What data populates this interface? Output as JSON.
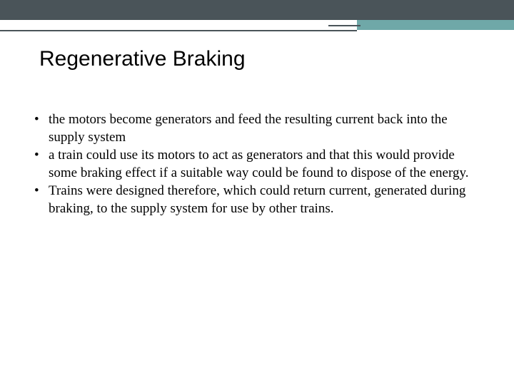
{
  "slide": {
    "title": "Regenerative Braking",
    "bullets": [
      "the motors become generators and feed the resulting current back into the supply system",
      "a train could use its motors to act as generators and that this would provide some braking effect if a suitable way could be found to dispose of the energy.",
      "Trains were designed therefore, which could return current, generated during braking, to the supply system for use by other trains."
    ]
  },
  "theme": {
    "top_bar_color": "#4a5459",
    "accent_color": "#6fa8a8",
    "background_color": "#ffffff",
    "title_fontsize": 30,
    "body_fontsize": 19
  }
}
